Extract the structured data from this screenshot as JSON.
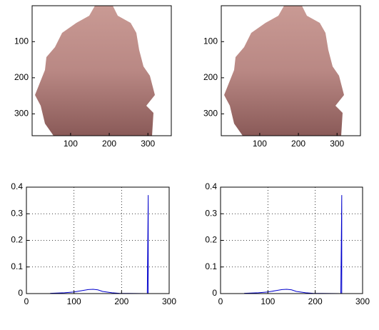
{
  "chart_data": [
    {
      "type": "image",
      "xlim": [
        0.5,
        360.5
      ],
      "ylim": [
        0.5,
        360.5
      ],
      "xticks": [
        100,
        200,
        300
      ],
      "yticks": [
        100,
        200,
        300
      ]
    },
    {
      "type": "image",
      "xlim": [
        0.5,
        360.5
      ],
      "ylim": [
        0.5,
        360.5
      ],
      "xticks": [
        100,
        200,
        300
      ],
      "yticks": [
        100,
        200,
        300
      ]
    },
    {
      "type": "line",
      "xlim": [
        0,
        300
      ],
      "ylim": [
        0,
        0.4
      ],
      "xticks": [
        0,
        100,
        200,
        300
      ],
      "yticks": [
        0,
        0.1,
        0.2,
        0.3,
        0.4
      ],
      "grid": true,
      "color": "#0000cc",
      "x": [
        50,
        80,
        100,
        120,
        130,
        140,
        150,
        160,
        180,
        195,
        254,
        255,
        255,
        256,
        256
      ],
      "values": [
        0.001,
        0.003,
        0.006,
        0.012,
        0.015,
        0.016,
        0.014,
        0.008,
        0.003,
        0.001,
        0,
        0.18,
        0.18,
        0.37,
        0
      ]
    },
    {
      "type": "line",
      "xlim": [
        0,
        300
      ],
      "ylim": [
        0,
        0.4
      ],
      "xticks": [
        0,
        100,
        200,
        300
      ],
      "yticks": [
        0,
        0.1,
        0.2,
        0.3,
        0.4
      ],
      "grid": true,
      "color": "#0000cc",
      "x": [
        50,
        80,
        100,
        120,
        130,
        140,
        150,
        160,
        180,
        195,
        254,
        255,
        255,
        256,
        256
      ],
      "values": [
        0.001,
        0.003,
        0.006,
        0.012,
        0.015,
        0.016,
        0.014,
        0.008,
        0.003,
        0.001,
        0,
        0.18,
        0.18,
        0.37,
        0
      ]
    }
  ]
}
